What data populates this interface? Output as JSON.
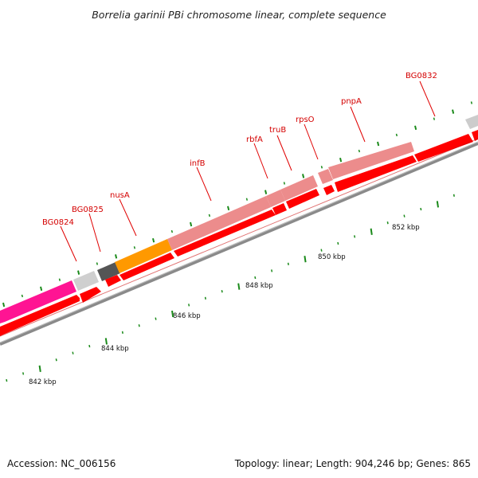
{
  "title": "Borrelia garinii PBi chromosome linear, complete sequence",
  "footer": {
    "accession": "Accession: NC_006156",
    "summary": "Topology: linear; Length: 904,246 bp; Genes: 865"
  },
  "colors": {
    "cds": "#ff0000",
    "cds_light": "#ec8c8c",
    "accent_pink": "#ff1493",
    "accent_orange": "#ff9900",
    "dark_gray": "#555555",
    "light_gray": "#cccccc",
    "tick_green": "#1a8a1a",
    "label_red": "#d40000",
    "backbone": "#777777"
  },
  "gene_labels": [
    "BG0824",
    "BG0825",
    "nusA",
    "infB",
    "rbfA",
    "truB",
    "rpsO",
    "pnpA",
    "BG0832"
  ],
  "scale_labels": [
    "842 kbp",
    "844 kbp",
    "846 kbp",
    "848 kbp",
    "850 kbp",
    "852 kbp"
  ]
}
